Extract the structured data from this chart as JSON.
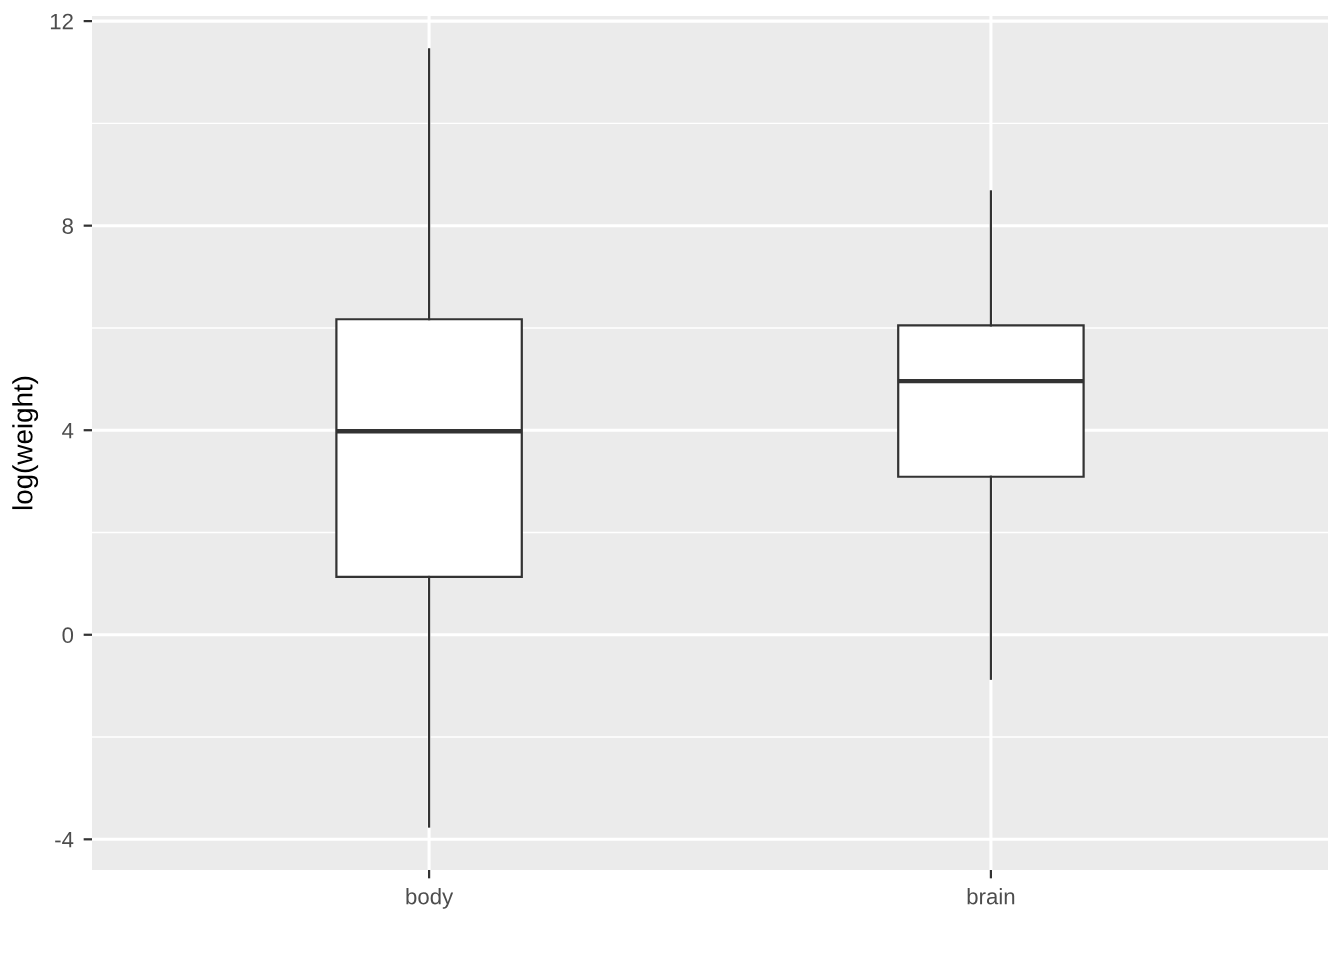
{
  "chart_data": {
    "type": "box",
    "ylabel": "log(weight)",
    "categories": [
      "body",
      "brain"
    ],
    "boxes": [
      {
        "low": -3.75,
        "q1": 1.13,
        "median": 3.98,
        "q3": 6.17,
        "high": 11.45
      },
      {
        "low": -0.86,
        "q1": 3.09,
        "median": 4.96,
        "q3": 6.05,
        "high": 8.67
      }
    ],
    "ylim": [
      -4.6,
      12.1
    ],
    "yticks": [
      -4,
      0,
      4,
      8,
      12
    ],
    "grid": true
  }
}
